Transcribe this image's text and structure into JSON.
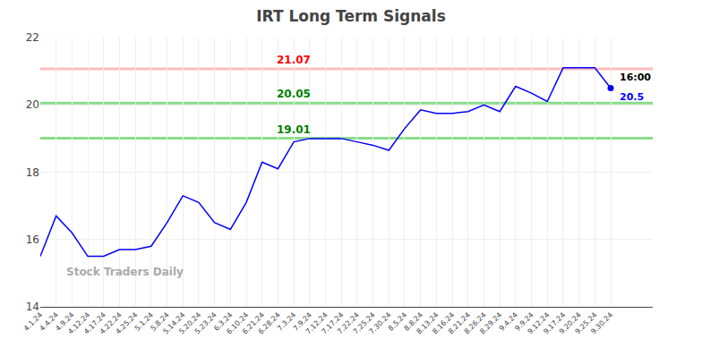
{
  "chart_data": {
    "type": "line",
    "title": "IRT Long Term Signals",
    "categories": [
      "4.1.24",
      "4.4.24",
      "4.9.24",
      "4.12.24",
      "4.17.24",
      "4.22.24",
      "4.25.24",
      "5.1.24",
      "5.8.24",
      "5.14.24",
      "5.20.24",
      "5.23.24",
      "6.3.24",
      "6.10.24",
      "6.21.24",
      "6.28.24",
      "7.3.24",
      "7.9.24",
      "7.12.24",
      "7.17.24",
      "7.22.24",
      "7.25.24",
      "7.30.24",
      "8.5.24",
      "8.8.24",
      "8.13.24",
      "8.16.24",
      "8.21.24",
      "8.26.24",
      "8.29.24",
      "9.4.24",
      "9.9.24",
      "9.12.24",
      "9.17.24",
      "9.20.24",
      "9.25.24",
      "9.30.24"
    ],
    "values": [
      15.5,
      16.7,
      16.2,
      15.5,
      15.5,
      15.7,
      15.7,
      15.8,
      16.5,
      17.3,
      17.1,
      16.5,
      16.3,
      17.1,
      18.3,
      18.1,
      18.9,
      19.0,
      19.0,
      19.0,
      18.9,
      18.8,
      18.65,
      19.3,
      19.85,
      19.75,
      19.75,
      19.8,
      20.0,
      19.8,
      20.55,
      20.35,
      20.1,
      21.1,
      21.1,
      21.1,
      20.5
    ],
    "color": "blue",
    "ylim": [
      14,
      22
    ],
    "yticks": [
      14,
      16,
      18,
      20,
      22
    ],
    "grid": true,
    "hlines": [
      {
        "value": 21.07,
        "label": "21.07",
        "color": "#ffbbbb",
        "label_color": "red"
      },
      {
        "value": 20.05,
        "label": "20.05",
        "color": "#88dd88",
        "label_color": "green"
      },
      {
        "value": 19.01,
        "label": "19.01",
        "color": "#88dd88",
        "label_color": "green"
      }
    ],
    "end_labels": [
      {
        "text": "16:00",
        "color": "black"
      },
      {
        "text": "20.5",
        "color": "blue"
      }
    ],
    "watermark": {
      "text": "Stock Traders Daily",
      "color": "#aaaaaa"
    }
  }
}
